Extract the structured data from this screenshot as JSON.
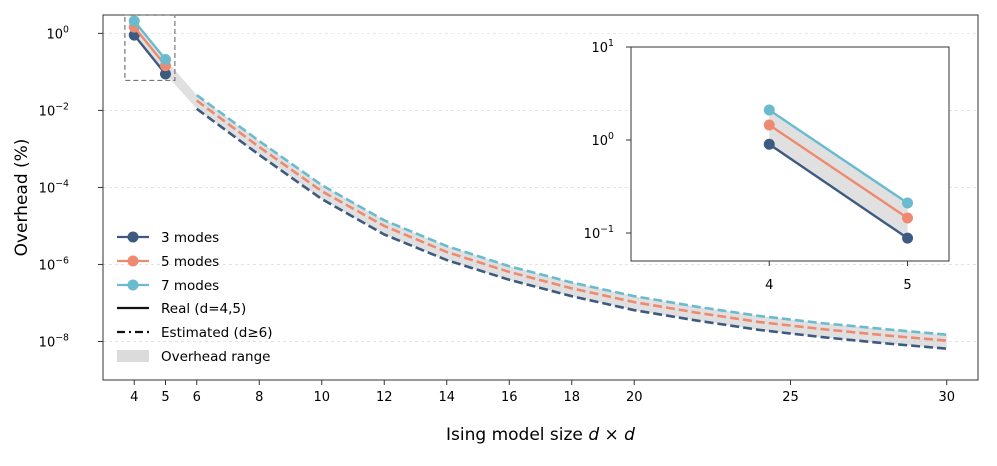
{
  "chart_data": {
    "type": "line",
    "xlabel_prefix": "Ising model size ",
    "xlabel_math": "d × d",
    "ylabel": "Overhead (%)",
    "yscale": "log",
    "ylim": [
      1e-09,
      3
    ],
    "xlim": [
      3,
      31
    ],
    "x_ticks": [
      4,
      5,
      6,
      8,
      10,
      12,
      14,
      16,
      18,
      20,
      25,
      30
    ],
    "x_tick_labels": [
      "4",
      "5",
      "6",
      "8",
      "10",
      "12",
      "14",
      "16",
      "18",
      "20",
      "25",
      "30"
    ],
    "y_ticks": [
      1,
      0.01,
      0.0001,
      1e-06,
      1e-08
    ],
    "y_tick_labels": [
      {
        "base": "10",
        "exp": "0"
      },
      {
        "base": "10",
        "exp": "−2"
      },
      {
        "base": "10",
        "exp": "−4"
      },
      {
        "base": "10",
        "exp": "−6"
      },
      {
        "base": "10",
        "exp": "−8"
      }
    ],
    "series": [
      {
        "name": "3 modes",
        "color": "#3d5a80",
        "real": {
          "x": [
            4,
            5
          ],
          "y": [
            0.9,
            0.088
          ]
        },
        "estimated": {
          "x": [
            6,
            8,
            10,
            12,
            14,
            16,
            18,
            20,
            22,
            24,
            26,
            28,
            30
          ],
          "y": [
            0.011,
            0.0007,
            5e-05,
            6e-06,
            1.3e-06,
            4e-07,
            1.5e-07,
            6.5e-08,
            3.5e-08,
            2e-08,
            1.3e-08,
            9e-09,
            6.5e-09
          ]
        }
      },
      {
        "name": "5 modes",
        "color": "#ee8a6f",
        "real": {
          "x": [
            4,
            5
          ],
          "y": [
            1.45,
            0.145
          ]
        },
        "estimated": {
          "x": [
            6,
            8,
            10,
            12,
            14,
            16,
            18,
            20,
            22,
            24,
            26,
            28,
            30
          ],
          "y": [
            0.018,
            0.00112,
            8e-05,
            1e-05,
            2.1e-06,
            6.4e-07,
            2.4e-07,
            1.05e-07,
            5.6e-08,
            3.2e-08,
            2.1e-08,
            1.45e-08,
            1.05e-08
          ]
        }
      },
      {
        "name": "7 modes",
        "color": "#6bbbcf",
        "real": {
          "x": [
            4,
            5
          ],
          "y": [
            2.1,
            0.21
          ]
        },
        "estimated": {
          "x": [
            6,
            8,
            10,
            12,
            14,
            16,
            18,
            20,
            22,
            24,
            26,
            28,
            30
          ],
          "y": [
            0.025,
            0.0016,
            0.000115,
            1.4e-05,
            3e-06,
            9e-07,
            3.4e-07,
            1.5e-07,
            8e-08,
            4.6e-08,
            3e-08,
            2.1e-08,
            1.5e-08
          ]
        }
      }
    ],
    "legend": {
      "placement": "lower-left",
      "entries": [
        "3 modes",
        "5 modes",
        "7 modes",
        "Real (d=4,5)",
        "Estimated (d≥6)",
        "Overhead range"
      ]
    },
    "range_band_color": "#cccccc",
    "inset": {
      "x_ticks": [
        4,
        5
      ],
      "x_tick_labels": [
        "4",
        "5"
      ],
      "ylim": [
        0.05,
        10
      ],
      "y_tick_labels": [
        {
          "base": "10",
          "exp": "1"
        },
        {
          "base": "10",
          "exp": "0"
        },
        {
          "base": "10",
          "exp": "−1"
        }
      ]
    }
  }
}
